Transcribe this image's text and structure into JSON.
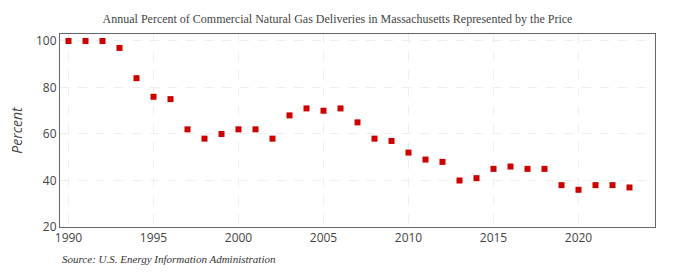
{
  "chart_data": {
    "type": "scatter",
    "title": "Annual Percent of Commercial Natural Gas Deliveries in Massachusetts Represented by the Price",
    "ylabel": "Percent",
    "annotations": [
      "Source: U.S. Energy Information Administration"
    ],
    "x": [
      1990,
      1991,
      1992,
      1993,
      1994,
      1995,
      1996,
      1997,
      1998,
      1999,
      2000,
      2001,
      2002,
      2003,
      2004,
      2005,
      2006,
      2007,
      2008,
      2009,
      2010,
      2011,
      2012,
      2013,
      2014,
      2015,
      2016,
      2017,
      2018,
      2019,
      2020,
      2021,
      2022,
      2023
    ],
    "values": [
      100,
      100,
      100,
      97,
      84,
      76,
      75,
      62,
      58,
      60,
      62,
      62,
      58,
      68,
      71,
      70,
      71,
      65,
      58,
      57,
      52,
      49,
      48,
      40,
      41,
      45,
      46,
      45,
      45,
      38,
      36,
      38,
      38,
      37
    ],
    "color": "#cc0000",
    "marker": "square",
    "grid": true,
    "xlim": [
      1989.5,
      2024.5
    ],
    "ylim": [
      20,
      103
    ],
    "xticks": [
      1990,
      1995,
      2000,
      2005,
      2010,
      2015,
      2020
    ],
    "yticks": [
      20,
      40,
      60,
      80,
      100
    ]
  }
}
